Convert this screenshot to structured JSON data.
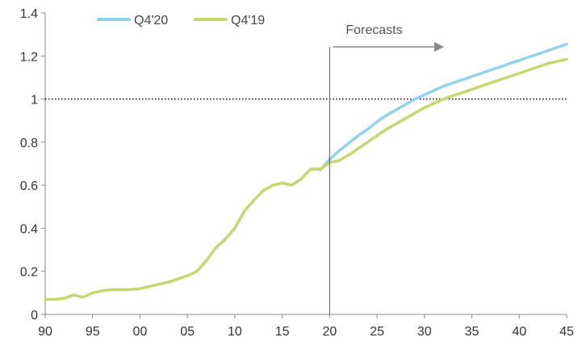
{
  "chart_data": {
    "type": "line",
    "title": "",
    "xlabel": "",
    "ylabel": "",
    "xlim": [
      1990,
      2045
    ],
    "ylim": [
      0,
      1.4
    ],
    "y_ticks": [
      0,
      0.2,
      0.4,
      0.6,
      0.8,
      1,
      1.2,
      1.4
    ],
    "y_tick_labels": [
      "0",
      "0.2",
      "0.4",
      "0.6",
      "0.8",
      "1",
      "1.2",
      "1.4"
    ],
    "x_ticks": [
      1990,
      1995,
      2000,
      2005,
      2010,
      2015,
      2020,
      2025,
      2030,
      2035,
      2040,
      2045
    ],
    "x_tick_labels": [
      "90",
      "95",
      "00",
      "05",
      "10",
      "15",
      "20",
      "25",
      "30",
      "35",
      "40",
      "45"
    ],
    "grid": false,
    "legend_position": "top-left",
    "reference_line": {
      "y": 1,
      "style": "dotted"
    },
    "forecast_marker": {
      "x": 2020,
      "label": "Forecasts"
    },
    "series": [
      {
        "name": "Q4'20",
        "color": "#8fd3ec",
        "x": [
          2019,
          2020,
          2021,
          2022,
          2023,
          2024,
          2025,
          2026,
          2027,
          2028,
          2029,
          2030,
          2031,
          2032,
          2033,
          2034,
          2035,
          2036,
          2037,
          2038,
          2039,
          2040,
          2041,
          2042,
          2043,
          2044,
          2045
        ],
        "values": [
          0.67,
          0.72,
          0.76,
          0.795,
          0.83,
          0.86,
          0.895,
          0.925,
          0.95,
          0.975,
          1.0,
          1.02,
          1.04,
          1.06,
          1.075,
          1.09,
          1.105,
          1.12,
          1.135,
          1.15,
          1.165,
          1.18,
          1.195,
          1.21,
          1.225,
          1.24,
          1.255
        ]
      },
      {
        "name": "Q4'19",
        "color": "#c5d86d",
        "x": [
          1990,
          1991,
          1992,
          1993,
          1994,
          1995,
          1996,
          1997,
          1998,
          1999,
          2000,
          2001,
          2002,
          2003,
          2004,
          2005,
          2006,
          2007,
          2008,
          2009,
          2010,
          2011,
          2012,
          2013,
          2014,
          2015,
          2016,
          2017,
          2018,
          2019,
          2020,
          2021,
          2022,
          2023,
          2024,
          2025,
          2026,
          2027,
          2028,
          2029,
          2030,
          2031,
          2032,
          2033,
          2034,
          2035,
          2036,
          2037,
          2038,
          2039,
          2040,
          2041,
          2042,
          2043,
          2044,
          2045
        ],
        "values": [
          0.07,
          0.07,
          0.075,
          0.09,
          0.08,
          0.1,
          0.11,
          0.115,
          0.115,
          0.115,
          0.12,
          0.13,
          0.14,
          0.15,
          0.165,
          0.18,
          0.2,
          0.25,
          0.31,
          0.35,
          0.4,
          0.48,
          0.53,
          0.575,
          0.6,
          0.61,
          0.6,
          0.63,
          0.675,
          0.675,
          0.705,
          0.715,
          0.74,
          0.77,
          0.8,
          0.83,
          0.86,
          0.885,
          0.91,
          0.935,
          0.96,
          0.98,
          1.0,
          1.015,
          1.03,
          1.045,
          1.06,
          1.075,
          1.09,
          1.105,
          1.12,
          1.135,
          1.15,
          1.165,
          1.175,
          1.185
        ]
      }
    ]
  }
}
